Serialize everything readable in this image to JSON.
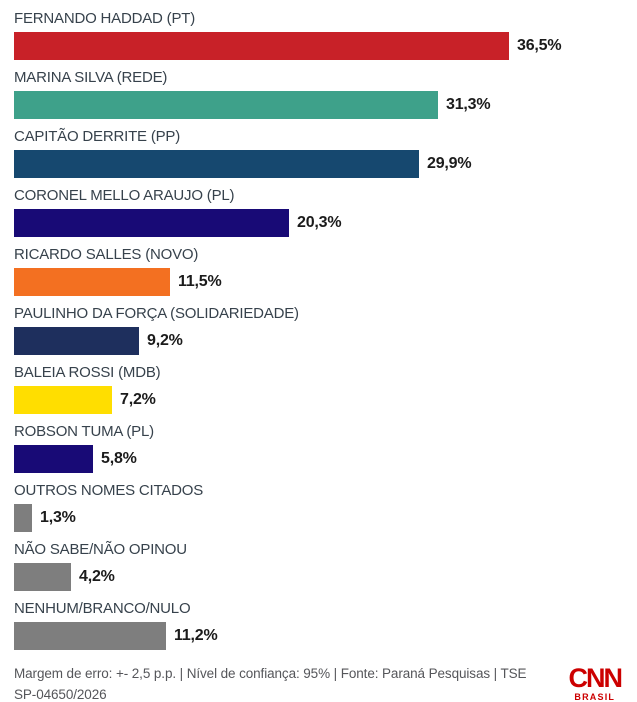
{
  "chart_data": {
    "type": "bar",
    "orientation": "horizontal",
    "title": "",
    "xlabel": "",
    "ylabel": "",
    "xlim": [
      0,
      36.5
    ],
    "grid": false,
    "legend": false,
    "categories": [
      "FERNANDO HADDAD (PT)",
      "MARINA SILVA (REDE)",
      "CAPITÃO DERRITE (PP)",
      "CORONEL MELLO ARAUJO (PL)",
      "RICARDO SALLES (NOVO)",
      "PAULINHO DA FORÇA (SOLIDARIEDADE)",
      "BALEIA ROSSI (MDB)",
      "ROBSON TUMA (PL)",
      "OUTROS NOMES CITADOS",
      "NÃO SABE/NÃO OPINOU",
      "NENHUM/BRANCO/NULO"
    ],
    "values": [
      36.5,
      31.3,
      29.9,
      20.3,
      11.5,
      9.2,
      7.2,
      5.8,
      1.3,
      4.2,
      11.2
    ],
    "value_labels": [
      "36,5%",
      "31,3%",
      "29,9%",
      "20,3%",
      "11,5%",
      "9,2%",
      "7,2%",
      "5,8%",
      "1,3%",
      "4,2%",
      "11,2%"
    ],
    "bar_colors": [
      "#c82128",
      "#3ea18a",
      "#16486f",
      "#180a76",
      "#f37021",
      "#1e2f5d",
      "#ffde00",
      "#180a76",
      "#7e7e7e",
      "#7e7e7e",
      "#7e7e7e"
    ]
  },
  "footer": {
    "note": "Margem de erro: +- 2,5 p.p. | Nível de confiança: 95% | Fonte: Paraná Pesquisas | TSE SP-04650/2026",
    "logo": {
      "text": "CNN",
      "subtext": "BRASIL",
      "color": "#cc0000"
    }
  },
  "colors": {
    "background": "#ffffff",
    "label": "#37424c",
    "value": "#1b1b1b",
    "footnote": "#55565a",
    "brand_red": "#cc0000"
  }
}
